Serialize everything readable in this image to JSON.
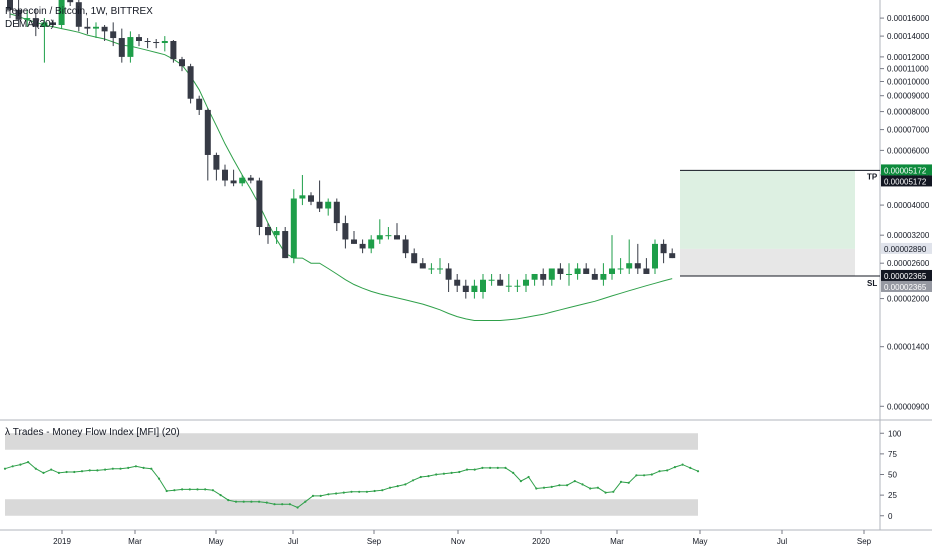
{
  "chart_data": [
    {
      "type": "candlestick",
      "title": "Pepecoin / Bitcoin, 1W, BITTREX",
      "symbol": "Pepecoin / Bitcoin",
      "interval": "1W",
      "exchange": "BITTREX",
      "indicator": "DEMA (20)",
      "x_ticks": [
        "2019",
        "Mar",
        "May",
        "Jul",
        "Sep",
        "Nov",
        "2020",
        "Mar",
        "May",
        "Jul",
        "Sep"
      ],
      "y_ticks": [
        "0.00016000",
        "0.00014000",
        "0.00012000",
        "0.00011000",
        "0.00010000",
        "0.00009000",
        "0.00008000",
        "0.00007000",
        "0.00006000",
        "0.00005000",
        "0.00004000",
        "0.00003200",
        "0.00002600",
        "0.00002000",
        "0.00001400",
        "0.00000900"
      ],
      "scale": "log",
      "ylim": [
        8.5e-06,
        0.000175
      ],
      "candles": [
        {
          "o": 0.000195,
          "h": 0.000205,
          "l": 0.00016,
          "c": 0.00017
        },
        {
          "o": 0.00017,
          "h": 0.00019,
          "l": 0.00015,
          "c": 0.000158
        },
        {
          "o": 0.000158,
          "h": 0.00017,
          "l": 0.00015,
          "c": 0.00016
        },
        {
          "o": 0.00016,
          "h": 0.000172,
          "l": 0.00014,
          "c": 0.00015
        },
        {
          "o": 0.00015,
          "h": 0.00016,
          "l": 0.000115,
          "c": 0.000155
        },
        {
          "o": 0.000155,
          "h": 0.000158,
          "l": 0.00015,
          "c": 0.000152
        },
        {
          "o": 0.000152,
          "h": 0.0002,
          "l": 0.000148,
          "c": 0.00019
        },
        {
          "o": 0.00019,
          "h": 0.0002,
          "l": 0.000175,
          "c": 0.00018
        },
        {
          "o": 0.00018,
          "h": 0.000195,
          "l": 0.000145,
          "c": 0.00015
        },
        {
          "o": 0.00015,
          "h": 0.00016,
          "l": 0.000142,
          "c": 0.000148
        },
        {
          "o": 0.000148,
          "h": 0.000155,
          "l": 0.000138,
          "c": 0.00015
        },
        {
          "o": 0.00015,
          "h": 0.000152,
          "l": 0.000135,
          "c": 0.000145
        },
        {
          "o": 0.000145,
          "h": 0.000155,
          "l": 0.00013,
          "c": 0.000138
        },
        {
          "o": 0.000138,
          "h": 0.000148,
          "l": 0.000115,
          "c": 0.00012
        },
        {
          "o": 0.00012,
          "h": 0.000145,
          "l": 0.000115,
          "c": 0.000139
        },
        {
          "o": 0.000139,
          "h": 0.000142,
          "l": 0.00013,
          "c": 0.000135
        },
        {
          "o": 0.000135,
          "h": 0.000138,
          "l": 0.000128,
          "c": 0.000134
        },
        {
          "o": 0.000134,
          "h": 0.000137,
          "l": 0.000128,
          "c": 0.000133
        },
        {
          "o": 0.000133,
          "h": 0.00014,
          "l": 0.000125,
          "c": 0.000135
        },
        {
          "o": 0.000135,
          "h": 0.000136,
          "l": 0.000115,
          "c": 0.000118
        },
        {
          "o": 0.000118,
          "h": 0.00012,
          "l": 0.000108,
          "c": 0.000112
        },
        {
          "o": 0.000112,
          "h": 0.000114,
          "l": 8.5e-05,
          "c": 8.8e-05
        },
        {
          "o": 8.8e-05,
          "h": 9e-05,
          "l": 7.8e-05,
          "c": 8.1e-05
        },
        {
          "o": 8.1e-05,
          "h": 8.2e-05,
          "l": 4.8e-05,
          "c": 5.8e-05
        },
        {
          "o": 5.8e-05,
          "h": 5.9e-05,
          "l": 4.8e-05,
          "c": 5.2e-05
        },
        {
          "o": 5.2e-05,
          "h": 5.4e-05,
          "l": 4.6e-05,
          "c": 4.8e-05
        },
        {
          "o": 4.8e-05,
          "h": 5.2e-05,
          "l": 4.6e-05,
          "c": 4.7e-05
        },
        {
          "o": 4.7e-05,
          "h": 5e-05,
          "l": 4.6e-05,
          "c": 4.9e-05
        },
        {
          "o": 4.9e-05,
          "h": 5e-05,
          "l": 4.7e-05,
          "c": 4.8e-05
        },
        {
          "o": 4.8e-05,
          "h": 4.9e-05,
          "l": 3.2e-05,
          "c": 3.4e-05
        },
        {
          "o": 3.4e-05,
          "h": 3.5e-05,
          "l": 3e-05,
          "c": 3.2e-05
        },
        {
          "o": 3.2e-05,
          "h": 3.4e-05,
          "l": 3e-05,
          "c": 3.3e-05
        },
        {
          "o": 3.3e-05,
          "h": 3.4e-05,
          "l": 2.7e-05,
          "c": 2.7e-05
        },
        {
          "o": 2.7e-05,
          "h": 4.5e-05,
          "l": 2.6e-05,
          "c": 4.2e-05
        },
        {
          "o": 4.2e-05,
          "h": 5e-05,
          "l": 4e-05,
          "c": 4.3e-05
        },
        {
          "o": 4.3e-05,
          "h": 4.4e-05,
          "l": 4e-05,
          "c": 4.1e-05
        },
        {
          "o": 4.1e-05,
          "h": 4.8e-05,
          "l": 3.8e-05,
          "c": 3.9e-05
        },
        {
          "o": 3.9e-05,
          "h": 4.2e-05,
          "l": 3.7e-05,
          "c": 4.1e-05
        },
        {
          "o": 4.1e-05,
          "h": 4.2e-05,
          "l": 3.3e-05,
          "c": 3.5e-05
        },
        {
          "o": 3.5e-05,
          "h": 3.7e-05,
          "l": 2.9e-05,
          "c": 3.1e-05
        },
        {
          "o": 3.1e-05,
          "h": 3.3e-05,
          "l": 3e-05,
          "c": 3e-05
        },
        {
          "o": 3e-05,
          "h": 3.1e-05,
          "l": 2.8e-05,
          "c": 2.9e-05
        },
        {
          "o": 2.9e-05,
          "h": 3.2e-05,
          "l": 2.8e-05,
          "c": 3.1e-05
        },
        {
          "o": 3.1e-05,
          "h": 3.6e-05,
          "l": 3e-05,
          "c": 3.2e-05
        },
        {
          "o": 3.2e-05,
          "h": 3.4e-05,
          "l": 3.1e-05,
          "c": 3.2e-05
        },
        {
          "o": 3.2e-05,
          "h": 3.5e-05,
          "l": 3.1e-05,
          "c": 3.1e-05
        },
        {
          "o": 3.1e-05,
          "h": 3.2e-05,
          "l": 2.7e-05,
          "c": 2.8e-05
        },
        {
          "o": 2.8e-05,
          "h": 2.9e-05,
          "l": 2.6e-05,
          "c": 2.6e-05
        },
        {
          "o": 2.6e-05,
          "h": 2.7e-05,
          "l": 2.5e-05,
          "c": 2.5e-05
        },
        {
          "o": 2.5e-05,
          "h": 2.6e-05,
          "l": 2.4e-05,
          "c": 2.5e-05
        },
        {
          "o": 2.5e-05,
          "h": 2.7e-05,
          "l": 2.4e-05,
          "c": 2.5e-05
        },
        {
          "o": 2.5e-05,
          "h": 2.6e-05,
          "l": 2.1e-05,
          "c": 2.3e-05
        },
        {
          "o": 2.3e-05,
          "h": 2.4e-05,
          "l": 2.1e-05,
          "c": 2.2e-05
        },
        {
          "o": 2.2e-05,
          "h": 2.3e-05,
          "l": 2e-05,
          "c": 2.1e-05
        },
        {
          "o": 2.1e-05,
          "h": 2.3e-05,
          "l": 2e-05,
          "c": 2.2e-05
        },
        {
          "o": 2.1e-05,
          "h": 2.4e-05,
          "l": 2e-05,
          "c": 2.3e-05
        },
        {
          "o": 2.3e-05,
          "h": 2.4e-05,
          "l": 2.2e-05,
          "c": 2.3e-05
        },
        {
          "o": 2.3e-05,
          "h": 2.4e-05,
          "l": 2.2e-05,
          "c": 2.2e-05
        },
        {
          "o": 2.2e-05,
          "h": 2.4e-05,
          "l": 2.1e-05,
          "c": 2.2e-05
        },
        {
          "o": 2.2e-05,
          "h": 2.3e-05,
          "l": 2.1e-05,
          "c": 2.2e-05
        },
        {
          "o": 2.2e-05,
          "h": 2.4e-05,
          "l": 2.1e-05,
          "c": 2.3e-05
        },
        {
          "o": 2.3e-05,
          "h": 2.4e-05,
          "l": 2.2e-05,
          "c": 2.4e-05
        },
        {
          "o": 2.4e-05,
          "h": 2.5e-05,
          "l": 2.2e-05,
          "c": 2.3e-05
        },
        {
          "o": 2.3e-05,
          "h": 2.5e-05,
          "l": 2.2e-05,
          "c": 2.5e-05
        },
        {
          "o": 2.5e-05,
          "h": 2.6e-05,
          "l": 2.3e-05,
          "c": 2.4e-05
        },
        {
          "o": 2.4e-05,
          "h": 2.6e-05,
          "l": 2.2e-05,
          "c": 2.4e-05
        },
        {
          "o": 2.4e-05,
          "h": 2.6e-05,
          "l": 2.3e-05,
          "c": 2.5e-05
        },
        {
          "o": 2.5e-05,
          "h": 2.6e-05,
          "l": 2.4e-05,
          "c": 2.4e-05
        },
        {
          "o": 2.4e-05,
          "h": 2.5e-05,
          "l": 2.3e-05,
          "c": 2.3e-05
        },
        {
          "o": 2.3e-05,
          "h": 2.6e-05,
          "l": 2.2e-05,
          "c": 2.4e-05
        },
        {
          "o": 2.4e-05,
          "h": 3.2e-05,
          "l": 2.3e-05,
          "c": 2.5e-05
        },
        {
          "o": 2.5e-05,
          "h": 2.7e-05,
          "l": 2.4e-05,
          "c": 2.5e-05
        },
        {
          "o": 2.5e-05,
          "h": 3.1e-05,
          "l": 2.4e-05,
          "c": 2.6e-05
        },
        {
          "o": 2.6e-05,
          "h": 3e-05,
          "l": 2.4e-05,
          "c": 2.5e-05
        },
        {
          "o": 2.5e-05,
          "h": 2.7e-05,
          "l": 2.4e-05,
          "c": 2.4e-05
        },
        {
          "o": 2.5e-05,
          "h": 3.1e-05,
          "l": 2.4e-05,
          "c": 3e-05
        },
        {
          "o": 3e-05,
          "h": 3.1e-05,
          "l": 2.6e-05,
          "c": 2.8e-05
        },
        {
          "o": 2.8e-05,
          "h": 2.9e-05,
          "l": 2.7e-05,
          "c": 2.7e-05
        }
      ],
      "dema_20": [
        0.000165,
        0.000162,
        0.000158,
        0.000155,
        0.000152,
        0.00015,
        0.000148,
        0.000146,
        0.000144,
        0.000141,
        0.000139,
        0.000137,
        0.000134,
        0.000131,
        0.00013,
        0.000128,
        0.000126,
        0.000124,
        0.000122,
        0.000118,
        0.000113,
        0.000104,
        9.4e-05,
        8.2e-05,
        7.2e-05,
        6.3e-05,
        5.6e-05,
        5e-05,
        4.5e-05,
        4e-05,
        3.5e-05,
        3.1e-05,
        2.8e-05,
        2.7e-05,
        2.7e-05,
        2.6e-05,
        2.6e-05,
        2.5e-05,
        2.4e-05,
        2.3e-05,
        2.22e-05,
        2.16e-05,
        2.11e-05,
        2.07e-05,
        2.04e-05,
        2.01e-05,
        1.98e-05,
        1.95e-05,
        1.92e-05,
        1.88e-05,
        1.84e-05,
        1.79e-05,
        1.75e-05,
        1.72e-05,
        1.7e-05,
        1.7e-05,
        1.7e-05,
        1.7e-05,
        1.71e-05,
        1.72e-05,
        1.74e-05,
        1.76e-05,
        1.78e-05,
        1.81e-05,
        1.84e-05,
        1.87e-05,
        1.9e-05,
        1.93e-05,
        1.96e-05,
        2e-05,
        2.04e-05,
        2.08e-05,
        2.12e-05,
        2.16e-05,
        2.2e-05,
        2.24e-05,
        2.28e-05,
        2.32e-05
      ],
      "position": {
        "tp_label": "TP",
        "sl_label": "SL",
        "take_profit": 5.172e-05,
        "entry": 2.89e-05,
        "stop_loss": 2.365e-05,
        "tp_badge": "0.00005172",
        "tp_badge_2": "0.00005172",
        "entry_badge": "0.00002890",
        "sl_badge": "0.00002365",
        "sl_badge_2": "0.00002365"
      },
      "colors": {
        "up": "#1e9e49",
        "down": "#363a45",
        "dema": "#2fa04a",
        "tp_zone": "#ddf0e2",
        "sl_zone": "#e7e7e7",
        "tp_badge": "#0d8a3c"
      }
    },
    {
      "type": "line",
      "title": "λ Trades - Money Flow Index [MFI] (20)",
      "y_ticks": [
        "100",
        "75",
        "50",
        "25",
        "0"
      ],
      "ylim": [
        -10,
        110
      ],
      "bands": [
        [
          80,
          100
        ],
        [
          0,
          20
        ]
      ],
      "series": [
        {
          "values": [
            57,
            60,
            62,
            65,
            57,
            52,
            56,
            52,
            53,
            53,
            54,
            55,
            55,
            56,
            57,
            57,
            58,
            60,
            58,
            57,
            45,
            30,
            31,
            32,
            32,
            32,
            32,
            31,
            25,
            19,
            17,
            17,
            17,
            17,
            16,
            14,
            14,
            14,
            10,
            17,
            24,
            24,
            26,
            27,
            28,
            29,
            29,
            29,
            30,
            31,
            34,
            36,
            38,
            43,
            47,
            48,
            50,
            51,
            52,
            53,
            56,
            56,
            58,
            58,
            58,
            58,
            52,
            42,
            47,
            33,
            34,
            35,
            37,
            37,
            42,
            38,
            33,
            34,
            28,
            29,
            41,
            40,
            49,
            49,
            50,
            54,
            55,
            59,
            62,
            58,
            54
          ]
        }
      ],
      "color": "#2fa04a"
    }
  ]
}
